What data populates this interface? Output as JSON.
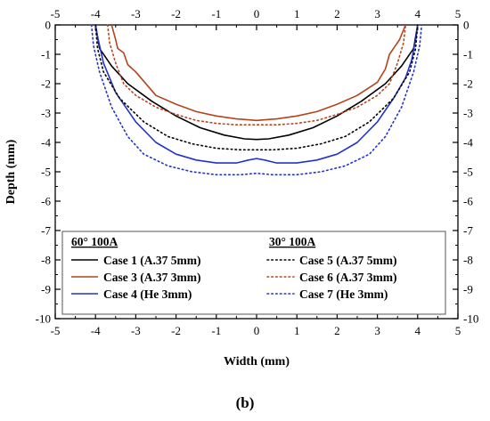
{
  "panel_label": "(b)",
  "chart_data": {
    "type": "line",
    "xlabel": "Width (mm)",
    "ylabel": "Depth (mm)",
    "xlim": [
      -5,
      5
    ],
    "ylim": [
      -10,
      0
    ],
    "x_ticks": [
      "-5",
      "-4",
      "-3",
      "-2",
      "-1",
      "0",
      "1",
      "2",
      "3",
      "4",
      "5"
    ],
    "y_ticks": [
      "0",
      "-1",
      "-2",
      "-3",
      "-4",
      "-5",
      "-6",
      "-7",
      "-8",
      "-9",
      "-10"
    ],
    "grid": false,
    "mirror_ticks_top_right": true,
    "legend": {
      "placement": "bottom",
      "groups": [
        {
          "title": "60° 100A",
          "entries": [
            "Case 1 (A.37 5mm)",
            "Case 3 (A.37 3mm)",
            "Case 4 (He  3mm)"
          ]
        },
        {
          "title": "30° 100A",
          "entries": [
            "Case 5 (A.37 5mm)",
            "Case 6 (A.37 3mm)",
            "Case 7 (He  3mm)"
          ]
        }
      ]
    },
    "series": [
      {
        "name": "Case 1 (A.37 5mm)",
        "color": "#000000",
        "style": "solid",
        "x": [
          -4.0,
          -3.9,
          -3.6,
          -3.2,
          -2.6,
          -2.0,
          -1.4,
          -0.8,
          -0.3,
          0.0,
          0.3,
          0.8,
          1.4,
          2.0,
          2.6,
          3.2,
          3.6,
          3.9,
          4.0
        ],
        "y": [
          0.0,
          -0.8,
          -1.4,
          -2.0,
          -2.6,
          -3.1,
          -3.5,
          -3.75,
          -3.88,
          -3.9,
          -3.88,
          -3.75,
          -3.5,
          -3.1,
          -2.6,
          -2.0,
          -1.4,
          -0.8,
          0.0
        ]
      },
      {
        "name": "Case 3 (A.37 3mm)",
        "color": "#b5441c",
        "style": "solid",
        "x": [
          -3.6,
          -3.5,
          -3.45,
          -3.3,
          -3.2,
          -3.0,
          -2.5,
          -2.0,
          -1.5,
          -1.0,
          -0.5,
          0.0,
          0.5,
          1.0,
          1.5,
          2.0,
          2.5,
          3.0,
          3.2,
          3.3,
          3.4,
          3.55,
          3.7
        ],
        "y": [
          0.0,
          -0.5,
          -0.8,
          -0.95,
          -1.35,
          -1.6,
          -2.4,
          -2.7,
          -2.95,
          -3.1,
          -3.2,
          -3.25,
          -3.2,
          -3.1,
          -2.95,
          -2.7,
          -2.4,
          -1.95,
          -1.5,
          -1.0,
          -0.8,
          -0.5,
          0.0
        ]
      },
      {
        "name": "Case 4 (He  3mm)",
        "color": "#2233cc",
        "style": "solid",
        "x": [
          -4.0,
          -3.95,
          -3.8,
          -3.5,
          -3.0,
          -2.5,
          -2.0,
          -1.5,
          -1.0,
          -0.5,
          -0.2,
          0.0,
          0.2,
          0.5,
          1.0,
          1.5,
          2.0,
          2.5,
          3.0,
          3.4,
          3.7,
          3.85,
          3.95,
          4.0
        ],
        "y": [
          0.0,
          -0.4,
          -1.3,
          -2.3,
          -3.3,
          -4.0,
          -4.4,
          -4.6,
          -4.7,
          -4.7,
          -4.6,
          -4.55,
          -4.6,
          -4.7,
          -4.7,
          -4.6,
          -4.4,
          -4.0,
          -3.3,
          -2.5,
          -1.8,
          -1.2,
          -0.5,
          0.0
        ]
      },
      {
        "name": "Case 5 (A.37 5mm)",
        "color": "#000000",
        "style": "dotted",
        "x": [
          -4.0,
          -3.95,
          -3.8,
          -3.4,
          -2.8,
          -2.2,
          -1.6,
          -1.0,
          -0.4,
          0.0,
          0.4,
          1.0,
          1.6,
          2.2,
          2.8,
          3.4,
          3.8,
          3.95,
          4.0
        ],
        "y": [
          0.0,
          -0.8,
          -1.6,
          -2.5,
          -3.3,
          -3.8,
          -4.05,
          -4.2,
          -4.25,
          -4.25,
          -4.25,
          -4.2,
          -4.05,
          -3.8,
          -3.3,
          -2.5,
          -1.6,
          -0.8,
          0.0
        ]
      },
      {
        "name": "Case 6 (A.37 3mm)",
        "color": "#b5441c",
        "style": "dotted",
        "x": [
          -3.7,
          -3.65,
          -3.5,
          -3.3,
          -3.0,
          -2.5,
          -2.0,
          -1.5,
          -1.0,
          -0.5,
          0.0,
          0.5,
          1.0,
          1.5,
          2.0,
          2.5,
          3.0,
          3.3,
          3.5,
          3.65,
          3.7
        ],
        "y": [
          0.0,
          -0.6,
          -1.3,
          -2.0,
          -2.4,
          -2.8,
          -3.05,
          -3.25,
          -3.35,
          -3.4,
          -3.4,
          -3.4,
          -3.35,
          -3.25,
          -3.05,
          -2.8,
          -2.4,
          -2.0,
          -1.3,
          -0.6,
          0.0
        ]
      },
      {
        "name": "Case 7 (He  3mm)",
        "color": "#2233cc",
        "style": "dotted",
        "x": [
          -4.1,
          -4.05,
          -3.9,
          -3.6,
          -3.2,
          -2.8,
          -2.2,
          -1.6,
          -1.0,
          -0.4,
          0.0,
          0.4,
          1.0,
          1.6,
          2.2,
          2.8,
          3.2,
          3.6,
          3.9,
          4.05,
          4.1
        ],
        "y": [
          0.0,
          -0.7,
          -1.6,
          -2.8,
          -3.8,
          -4.4,
          -4.8,
          -5.0,
          -5.1,
          -5.1,
          -5.05,
          -5.1,
          -5.1,
          -5.0,
          -4.8,
          -4.4,
          -3.8,
          -2.8,
          -1.6,
          -0.7,
          0.0
        ]
      }
    ]
  }
}
